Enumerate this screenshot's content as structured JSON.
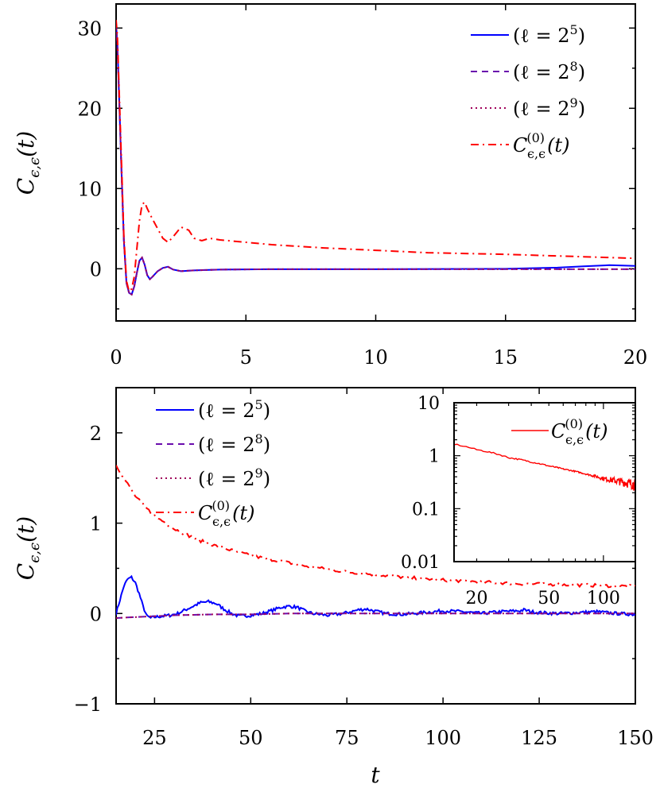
{
  "chart_data": [
    {
      "type": "line",
      "ylabel": "C_{ε,ε}(t)",
      "xlim": [
        0,
        20
      ],
      "ylim": [
        -6.5,
        33
      ],
      "xticks": [
        0,
        5,
        10,
        15,
        20
      ],
      "yticks": [
        0,
        10,
        20,
        30
      ],
      "legend_position": "top-right",
      "series": [
        {
          "name": "(ℓ = 2⁵)",
          "color": "#0000ff",
          "dash": "solid",
          "x": [
            0,
            0.05,
            0.1,
            0.2,
            0.3,
            0.4,
            0.5,
            0.6,
            0.7,
            0.8,
            0.9,
            1.0,
            1.1,
            1.2,
            1.3,
            1.4,
            1.6,
            1.8,
            2.0,
            2.2,
            2.5,
            3,
            4,
            6,
            10,
            15,
            17,
            18,
            19,
            20
          ],
          "y": [
            30.5,
            28,
            23,
            13,
            3.5,
            -1.8,
            -3.0,
            -3.2,
            -2.2,
            -0.5,
            1.0,
            1.4,
            0.5,
            -0.8,
            -1.3,
            -1.0,
            -0.3,
            0.1,
            0.25,
            -0.1,
            -0.3,
            -0.2,
            -0.1,
            -0.05,
            -0.05,
            0,
            0.15,
            0.3,
            0.45,
            0.35
          ]
        },
        {
          "name": "(ℓ = 2⁸)",
          "color": "#6a0dad",
          "dash": "dashed",
          "x": [
            0,
            0.05,
            0.1,
            0.2,
            0.3,
            0.4,
            0.5,
            0.6,
            0.7,
            0.8,
            0.9,
            1.0,
            1.1,
            1.2,
            1.3,
            1.4,
            1.6,
            1.8,
            2.0,
            2.2,
            2.5,
            3,
            4,
            6,
            10,
            15,
            17,
            18,
            19,
            20
          ],
          "y": [
            30.5,
            28,
            23,
            13,
            3.5,
            -1.8,
            -3.0,
            -3.2,
            -2.2,
            -0.5,
            1.0,
            1.4,
            0.5,
            -0.8,
            -1.3,
            -1.0,
            -0.3,
            0.1,
            0.25,
            -0.1,
            -0.3,
            -0.2,
            -0.1,
            -0.05,
            -0.05,
            -0.05,
            -0.05,
            -0.05,
            -0.05,
            -0.05
          ]
        },
        {
          "name": "(ℓ = 2⁹)",
          "color": "#a0005a",
          "dash": "dotted",
          "x": [
            0,
            0.05,
            0.1,
            0.2,
            0.3,
            0.4,
            0.5,
            0.6,
            0.7,
            0.8,
            0.9,
            1.0,
            1.1,
            1.2,
            1.3,
            1.4,
            1.6,
            1.8,
            2.0,
            2.2,
            2.5,
            3,
            4,
            6,
            10,
            15,
            17,
            18,
            19,
            20
          ],
          "y": [
            30.5,
            28,
            23,
            13,
            3.5,
            -1.8,
            -3.0,
            -3.2,
            -2.2,
            -0.5,
            1.0,
            1.4,
            0.5,
            -0.8,
            -1.3,
            -1.0,
            -0.3,
            0.1,
            0.25,
            -0.1,
            -0.3,
            -0.2,
            -0.1,
            -0.05,
            -0.05,
            -0.05,
            -0.05,
            -0.05,
            -0.05,
            -0.05
          ]
        },
        {
          "name": "C^{(0)}_{ε,ε}(t)",
          "color": "#ff0000",
          "dash": "dashdot",
          "x": [
            0,
            0.05,
            0.1,
            0.2,
            0.3,
            0.4,
            0.5,
            0.6,
            0.7,
            0.8,
            0.9,
            1.0,
            1.1,
            1.2,
            1.4,
            1.6,
            1.8,
            2.0,
            2.2,
            2.5,
            2.8,
            3.0,
            3.3,
            3.6,
            4,
            5,
            6,
            8,
            10,
            12,
            15,
            18,
            20
          ],
          "y": [
            31,
            29,
            24,
            14,
            4,
            -1.5,
            -2.8,
            -2.5,
            -1,
            2.5,
            6,
            8,
            8.3,
            7.5,
            6.2,
            5,
            3.8,
            3.3,
            4.0,
            5.2,
            4.8,
            3.8,
            3.5,
            3.8,
            3.6,
            3.3,
            3.0,
            2.6,
            2.3,
            2.0,
            1.8,
            1.5,
            1.3
          ]
        }
      ]
    },
    {
      "type": "line",
      "xlabel": "t",
      "ylabel": "C_{ε,ε}(t)",
      "xlim": [
        15,
        150
      ],
      "ylim": [
        -1,
        2.5
      ],
      "xticks": [
        25,
        50,
        75,
        100,
        125,
        150
      ],
      "ytick_labels": [
        "−1",
        "0",
        "1",
        "2"
      ],
      "legend_position": "top-left",
      "series": [
        {
          "name": "(ℓ = 2⁵)",
          "color": "#0000ff",
          "dash": "solid",
          "x": [
            15,
            16,
            17,
            18,
            19,
            20,
            21,
            22,
            23,
            24,
            25,
            27,
            29,
            31,
            33,
            35,
            37,
            39,
            41,
            43,
            45,
            47,
            50,
            53,
            56,
            58,
            60,
            62,
            64,
            66,
            70,
            74,
            78,
            80,
            82,
            85,
            90,
            95,
            100,
            105,
            110,
            115,
            120,
            121,
            123,
            125,
            130,
            135,
            140,
            145,
            150
          ],
          "y": [
            0.0,
            0.15,
            0.3,
            0.38,
            0.4,
            0.34,
            0.22,
            0.08,
            -0.03,
            -0.05,
            -0.04,
            -0.03,
            -0.02,
            0.0,
            0.04,
            0.08,
            0.12,
            0.13,
            0.11,
            0.05,
            0.0,
            -0.03,
            -0.02,
            0.0,
            0.04,
            0.07,
            0.08,
            0.07,
            0.03,
            0.0,
            -0.02,
            0.0,
            0.04,
            0.05,
            0.03,
            0.0,
            -0.01,
            0.01,
            0.03,
            0.02,
            0.0,
            0.02,
            0.03,
            0.04,
            0.02,
            0.01,
            0.0,
            0.01,
            0.02,
            0.0,
            -0.01
          ]
        },
        {
          "name": "(ℓ = 2⁸)",
          "color": "#6a0dad",
          "dash": "dashed",
          "x": [
            15,
            20,
            25,
            30,
            40,
            50,
            60,
            75,
            100,
            125,
            150
          ],
          "y": [
            -0.05,
            -0.04,
            -0.03,
            -0.02,
            -0.01,
            -0.01,
            0.0,
            0.0,
            0.0,
            0.0,
            0.0
          ]
        },
        {
          "name": "(ℓ = 2⁹)",
          "color": "#a0005a",
          "dash": "dotted",
          "x": [
            15,
            20,
            25,
            30,
            40,
            50,
            60,
            75,
            100,
            125,
            150
          ],
          "y": [
            -0.05,
            -0.04,
            -0.03,
            -0.02,
            -0.01,
            -0.01,
            0.0,
            0.0,
            0.0,
            0.0,
            0.0
          ]
        },
        {
          "name": "C^{(0)}_{ε,ε}(t)",
          "color": "#ff0000",
          "dash": "dashdot",
          "x": [
            15,
            17,
            20,
            22,
            25,
            28,
            30,
            33,
            36,
            40,
            45,
            50,
            55,
            60,
            65,
            70,
            75,
            80,
            90,
            100,
            110,
            120,
            130,
            140,
            150
          ],
          "y": [
            1.65,
            1.5,
            1.3,
            1.2,
            1.08,
            1.0,
            0.94,
            0.88,
            0.82,
            0.76,
            0.7,
            0.64,
            0.6,
            0.56,
            0.52,
            0.49,
            0.46,
            0.44,
            0.4,
            0.37,
            0.35,
            0.33,
            0.32,
            0.31,
            0.3
          ]
        }
      ],
      "inset": {
        "type": "line",
        "log_x": true,
        "log_y": true,
        "xlim": [
          15,
          150
        ],
        "ylim": [
          0.01,
          10
        ],
        "xtick_labels": [
          "20",
          "50",
          "100"
        ],
        "ytick_labels": [
          "10",
          "1",
          "0.1",
          "0.01"
        ],
        "legend_position": "top-right",
        "series": [
          {
            "name": "C^{(0)}_{ε,ε}(t)",
            "color": "#ff0000",
            "dash": "solid",
            "x": [
              15,
              20,
              30,
              40,
              50,
              60,
              80,
              100,
              120,
              140,
              150
            ],
            "y": [
              1.65,
              1.3,
              0.92,
              0.76,
              0.64,
              0.56,
              0.45,
              0.37,
              0.33,
              0.3,
              0.28
            ]
          }
        ]
      }
    }
  ]
}
